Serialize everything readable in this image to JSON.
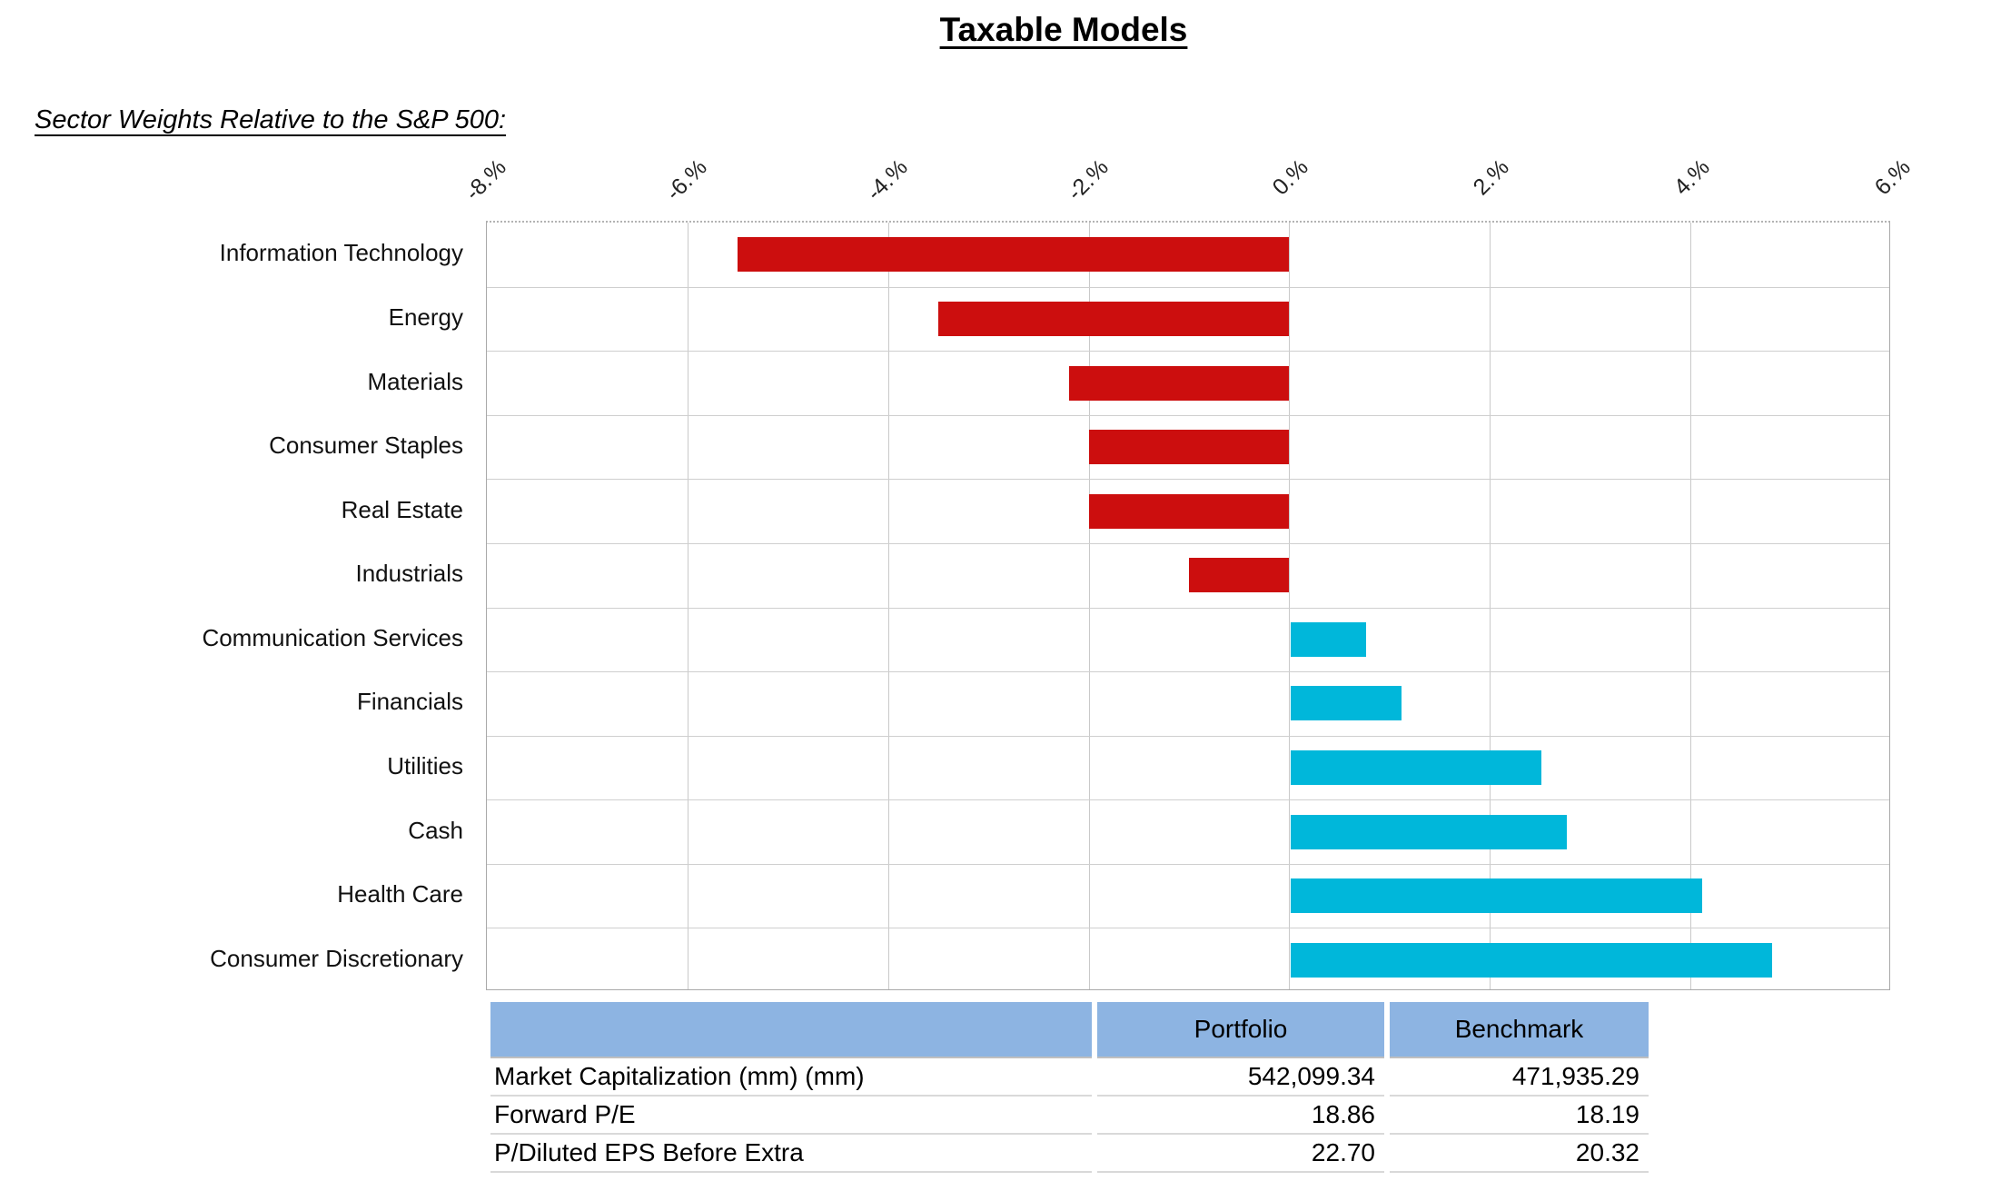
{
  "page": {
    "title": "Taxable Models",
    "subtitle": "Sector Weights Relative to the S&P 500:"
  },
  "chart_data": {
    "type": "bar",
    "orientation": "horizontal",
    "title": "Taxable Models",
    "subtitle": "Sector Weights Relative to the S&P 500:",
    "categories": [
      "Information Technology",
      "Energy",
      "Materials",
      "Consumer Staples",
      "Real Estate",
      "Industrials",
      "Communication Services",
      "Financials",
      "Utilities",
      "Cash",
      "Health Care",
      "Consumer Discretionary"
    ],
    "values": [
      -5.5,
      -3.5,
      -2.2,
      -2.0,
      -2.0,
      -1.0,
      0.75,
      1.1,
      2.5,
      2.75,
      4.1,
      4.8
    ],
    "unit": "%",
    "xlim": [
      -8,
      6
    ],
    "tick_step": 2,
    "tick_labels": [
      "-8.%",
      "-6.%",
      "-4.%",
      "-2.%",
      "0.%",
      "2.%",
      "4.%",
      "6.%"
    ],
    "grid": true,
    "legend": "none",
    "negative_color": "#cc0e0e",
    "positive_color": "#00b7da",
    "gridline_color": "#c9c9c9"
  },
  "table": {
    "header": [
      "",
      "Portfolio",
      "Benchmark"
    ],
    "header_bg": "#8db4e2",
    "rows": [
      {
        "label": "Market Capitalization (mm) (mm)",
        "portfolio": "542,099.34",
        "benchmark": "471,935.29"
      },
      {
        "label": "Forward P/E",
        "portfolio": "18.86",
        "benchmark": "18.19"
      },
      {
        "label": "P/Diluted EPS Before Extra",
        "portfolio": "22.70",
        "benchmark": "20.32"
      }
    ]
  }
}
